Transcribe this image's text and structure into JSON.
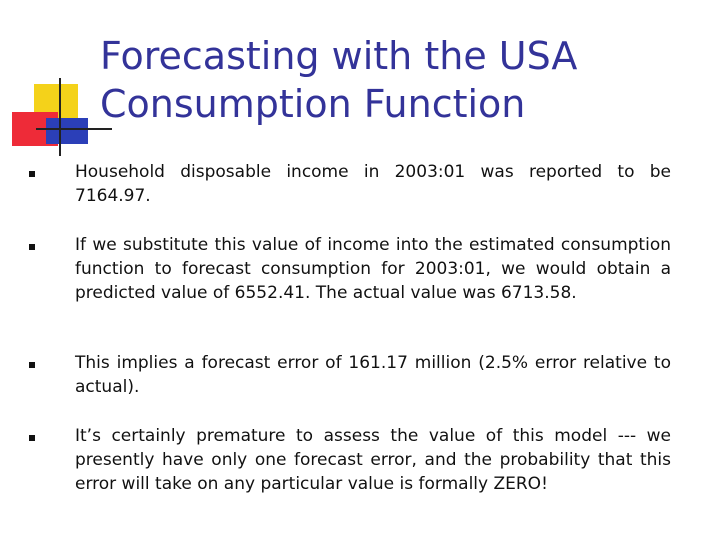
{
  "slide": {
    "title_lines": [
      "Forecasting with the USA",
      "Consumption Function"
    ],
    "bullets": [
      "Household disposable income in 2003:01 was reported to be 7164.97.",
      "If we substitute this value of income into the estimated consumption function to forecast consumption for 2003:01, we would obtain a predicted value of 6552.41.  The actual value was 6713.58.",
      "This implies a forecast error of 161.17 million (2.5% error relative to actual).",
      "It’s certainly premature to assess the value of this model --- we presently have only one forecast error, and the probability that this error will take on any particular value is formally ZERO!"
    ]
  },
  "colors": {
    "title": "#333399",
    "deco_yellow": "#f4d21a",
    "deco_red": "#ee2b38",
    "deco_blue": "#2b3fb8",
    "text": "#111111"
  }
}
